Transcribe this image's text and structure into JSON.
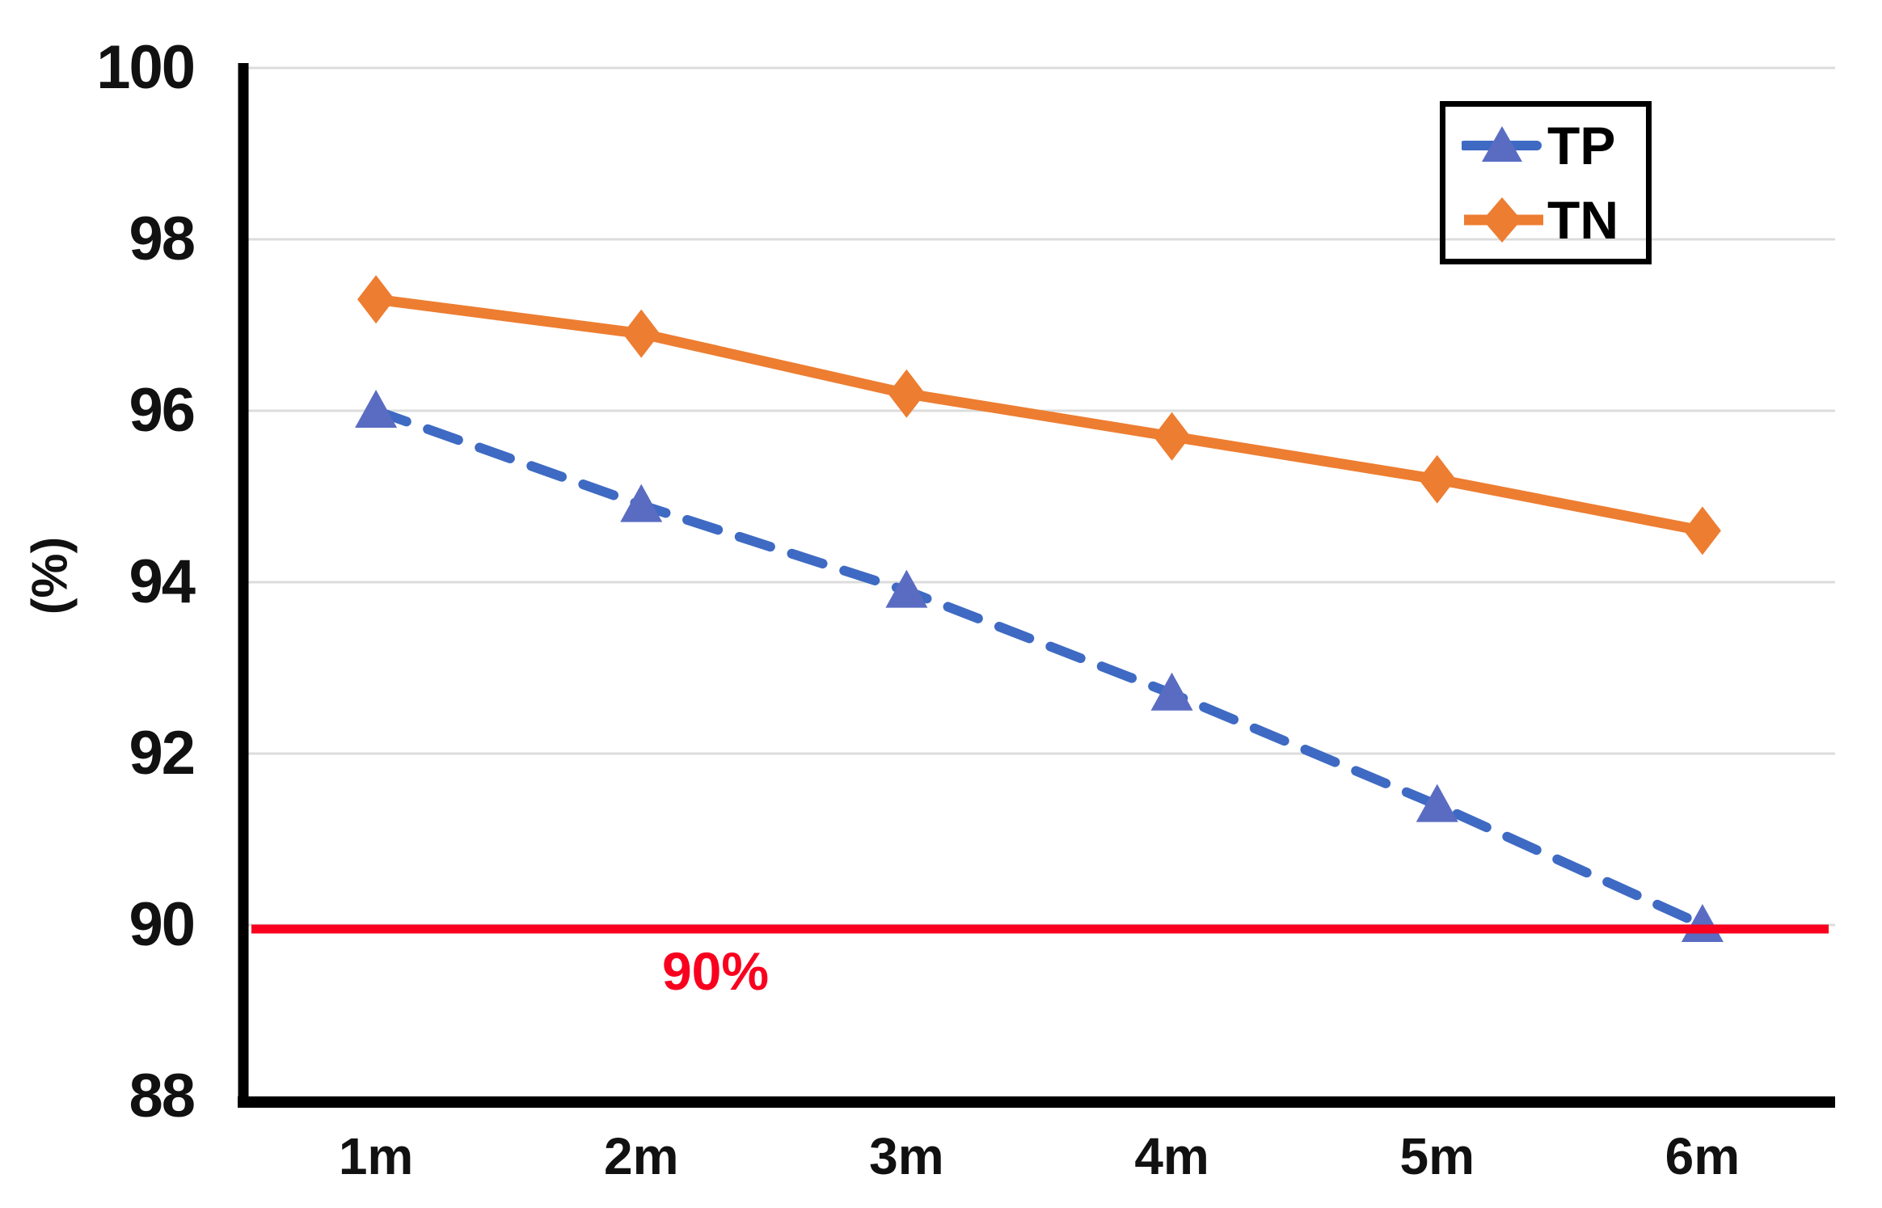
{
  "chart_data": {
    "type": "line",
    "categories": [
      "1m",
      "2m",
      "3m",
      "4m",
      "5m",
      "6m"
    ],
    "series": [
      {
        "name": "TP",
        "values": [
          96.0,
          94.9,
          93.9,
          92.7,
          91.4,
          90.0
        ],
        "color": "#3E6AC3",
        "marker_color": "#5A6CC2",
        "marker": "triangle",
        "line_style": "dashed"
      },
      {
        "name": "TN",
        "values": [
          97.3,
          96.9,
          96.2,
          95.7,
          95.2,
          94.6
        ],
        "color": "#ED7D31",
        "marker_color": "#ED7D31",
        "marker": "diamond",
        "line_style": "solid"
      }
    ],
    "xlabel": "",
    "ylabel": "(%)",
    "ylim": [
      88,
      100
    ],
    "yticks": [
      100,
      98,
      96,
      94,
      92,
      90,
      88
    ],
    "grid": "horizontal-gridlines",
    "grid_color": "#DCDCDC",
    "axis_color": "#000000",
    "legend_position": "top-right",
    "reference_line": {
      "value": 90,
      "label": "90%",
      "color": "#F8001E"
    }
  }
}
